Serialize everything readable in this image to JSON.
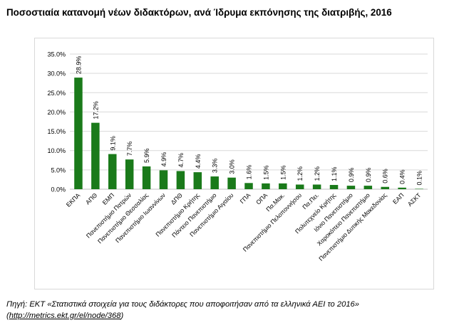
{
  "title": "Ποσοστιαία κατανομή νέων διδακτόρων, ανά Ίδρυμα εκπόνησης της διατριβής, 2016",
  "source": {
    "line1": "Πηγή: ΕΚΤ «Στατιστικά στοιχεία για τους διδάκτορες που αποφοιτήσαν από τα ελληνικά ΑΕΙ το 2016»",
    "link_open": "(",
    "link_text": "http://metrics.ekt.gr/el/node/368",
    "link_close": ")"
  },
  "colors": {
    "bar": "#1a7a1a",
    "grid": "#d9d9d9",
    "axis": "#bfbfbf"
  },
  "chart_data": {
    "type": "bar",
    "categories": [
      "ΕΚΠΑ",
      "ΑΠΘ",
      "ΕΜΠ",
      "Πανεπιστήμιο Πατρών",
      "Πανεπιστήμιο Θεσσαλίας",
      "Πανεπιστήμιο Ιωαννίνων",
      "ΔΠΘ",
      "Πανεπιστήμιο Κρήτης",
      "Πάντειο Πανεπιστήμιο",
      "Πανεπιστήμιο Αιγαίου",
      "ΓΠΑ",
      "ΟΠΑ",
      "Πα.Μακ.",
      "Πανεπιστήμιο Πελοποννήσου",
      "Πα.Πει.",
      "Πολυτεχνείο Κρήτης",
      "Ιόνιο Πανεπιστήμιο",
      "Χαροκόπειο Πανεπιστήμιο",
      "Πανεπιστήμιο Δυτικής Μακεδονίας",
      "ΕΑΠ",
      "ΑΣΚΤ"
    ],
    "values": [
      28.9,
      17.2,
      9.1,
      7.7,
      5.9,
      4.9,
      4.7,
      4.4,
      3.3,
      3.0,
      1.6,
      1.5,
      1.5,
      1.2,
      1.2,
      1.1,
      0.9,
      0.9,
      0.6,
      0.4,
      0.1
    ],
    "value_labels": [
      "28.9%",
      "17.2%",
      "9.1%",
      "7.7%",
      "5.9%",
      "4.9%",
      "4.7%",
      "4.4%",
      "3.3%",
      "3.0%",
      "1.6%",
      "1.5%",
      "1.5%",
      "1.2%",
      "1.2%",
      "1.1%",
      "0.9%",
      "0.9%",
      "0.6%",
      "0.4%",
      "0.1%"
    ],
    "yticks": [
      "0.0%",
      "5.0%",
      "10.0%",
      "15.0%",
      "20.0%",
      "25.0%",
      "30.0%",
      "35.0%"
    ],
    "ylim": [
      0,
      35
    ],
    "grid": true,
    "legend": "none"
  }
}
